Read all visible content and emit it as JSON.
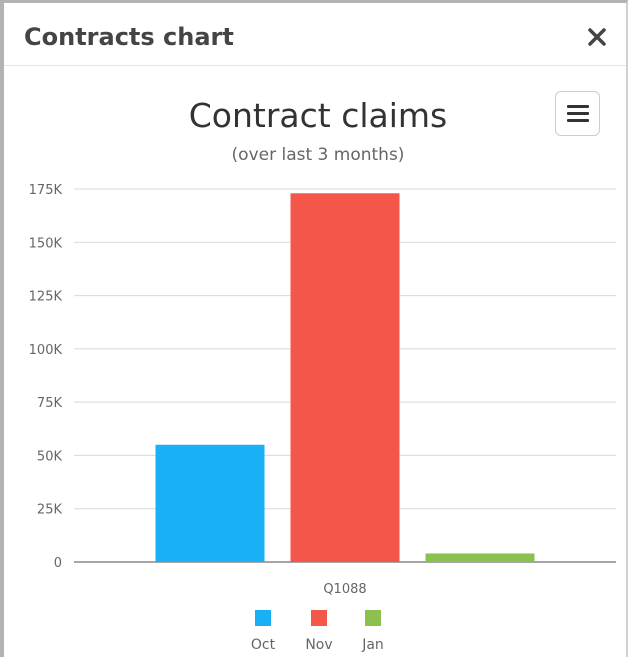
{
  "dialog": {
    "title": "Contracts chart",
    "close_icon": "close-icon",
    "menu_icon": "hamburger-menu-icon"
  },
  "chart_data": {
    "type": "bar",
    "title": "Contract claims",
    "subtitle": "(over last 3 months)",
    "categories": [
      "Q1088"
    ],
    "series": [
      {
        "name": "Oct",
        "color": "#1ab0f5",
        "values": [
          55000
        ]
      },
      {
        "name": "Nov",
        "color": "#f5564a",
        "values": [
          173000
        ]
      },
      {
        "name": "Jan",
        "color": "#8cc152",
        "values": [
          4000
        ]
      }
    ],
    "y_ticks": [
      0,
      25000,
      50000,
      75000,
      100000,
      125000,
      150000,
      175000
    ],
    "y_tick_labels": [
      "0",
      "25K",
      "50K",
      "75K",
      "100K",
      "125K",
      "150K",
      "175K"
    ],
    "ylim": [
      0,
      175000
    ],
    "grid": true,
    "legend": "bottom-center"
  }
}
